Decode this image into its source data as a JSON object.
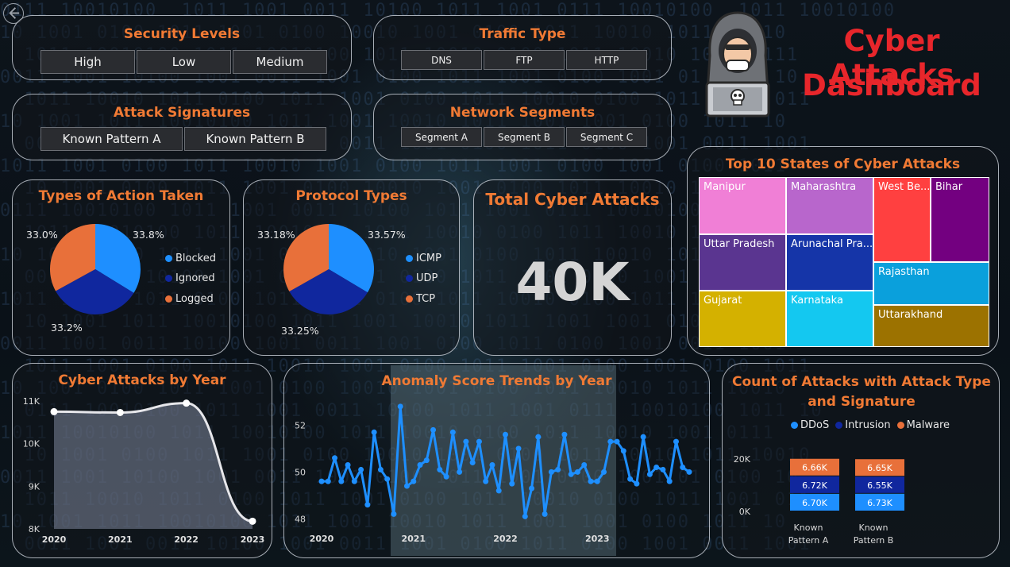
{
  "dashboard": {
    "title_line1": "Cyber Attacks",
    "title_line2": "Dashboard"
  },
  "colors": {
    "accent": "#f07a34",
    "title_red": "#e8262b",
    "series_blue": "#1e8fff",
    "series_navy": "#10279e",
    "series_orange": "#e8703a"
  },
  "slicers": {
    "security_levels": {
      "title": "Security Levels",
      "options": [
        "High",
        "Low",
        "Medium"
      ]
    },
    "traffic_type": {
      "title": "Traffic Type",
      "options": [
        "DNS",
        "FTP",
        "HTTP"
      ]
    },
    "attack_signatures": {
      "title": "Attack Signatures",
      "options": [
        "Known Pattern A",
        "Known Pattern B"
      ]
    },
    "network_segments": {
      "title": "Network Segments",
      "options": [
        "Segment A",
        "Segment B",
        "Segment C"
      ]
    }
  },
  "kpi": {
    "title": "Total Cyber Attacks",
    "value": "40K"
  },
  "chart_data": [
    {
      "type": "pie",
      "title": "Types of Action Taken",
      "labels": [
        "Blocked",
        "Ignored",
        "Logged"
      ],
      "values": [
        33.8,
        33.2,
        33.0
      ],
      "value_labels": [
        "33.8%",
        "33.2%",
        "33.0%"
      ],
      "colors": [
        "#1e8fff",
        "#10279e",
        "#e8703a"
      ],
      "legend": "right"
    },
    {
      "type": "pie",
      "title": "Protocol Types",
      "labels": [
        "ICMP",
        "UDP",
        "TCP"
      ],
      "values": [
        33.57,
        33.25,
        33.18
      ],
      "value_labels": [
        "33.57%",
        "33.25%",
        "33.18%"
      ],
      "colors": [
        "#1e8fff",
        "#10279e",
        "#e8703a"
      ],
      "legend": "right"
    },
    {
      "type": "treemap",
      "title": "Top 10 States of Cyber Attacks",
      "labels": [
        "Manipur",
        "Maharashtra",
        "West Be...",
        "Bihar",
        "Uttar Pradesh",
        "Arunachal Pra...",
        "Rajasthan",
        "Gujarat",
        "Karnataka",
        "Uttarakhand"
      ],
      "colors": [
        "#f07fd6",
        "#b866cc",
        "#ff4040",
        "#730080",
        "#5a3590",
        "#1535a8",
        "#0aa0dc",
        "#d4b100",
        "#14c8f0",
        "#9c7200"
      ]
    },
    {
      "type": "area",
      "title": "Cyber Attacks by Year",
      "x": [
        "2020",
        "2021",
        "2022",
        "2023"
      ],
      "y": [
        10.75,
        10.73,
        10.95,
        8.18
      ],
      "y_unit": "K",
      "ylim": [
        8,
        11
      ],
      "yticks": [
        "8K",
        "9K",
        "10K",
        "11K"
      ],
      "grid": false
    },
    {
      "type": "line",
      "title": "Anomaly Score Trends by Year",
      "x_range": [
        2020,
        2024
      ],
      "xticks": [
        "2020",
        "2021",
        "2022",
        "2023"
      ],
      "yticks": [
        "48",
        "50",
        "52"
      ],
      "ylim": [
        47.5,
        53.0
      ],
      "y": [
        49.6,
        49.6,
        50.6,
        49.6,
        50.3,
        49.6,
        50.1,
        48.6,
        51.7,
        50.1,
        49.7,
        48.2,
        52.8,
        49.4,
        49.6,
        50.3,
        50.5,
        51.8,
        50.1,
        49.8,
        51.7,
        50.0,
        51.3,
        50.4,
        51.3,
        49.6,
        50.3,
        49.2,
        51.6,
        49.5,
        51.0,
        48.1,
        49.3,
        51.5,
        48.2,
        50.0,
        50.1,
        51.6,
        49.9,
        50.0,
        50.3,
        49.6,
        49.6,
        50.0,
        51.3,
        51.3,
        50.9,
        49.7,
        49.5,
        51.5,
        49.9,
        50.2,
        50.1,
        49.6,
        51.3,
        50.2,
        50.0
      ],
      "grid": false
    },
    {
      "type": "bar",
      "stacked": true,
      "title": "Count of Attacks with Attack Type and Signature",
      "categories": [
        "Known Pattern A",
        "Known Pattern B"
      ],
      "series": [
        {
          "name": "DDoS",
          "values": [
            6.7,
            6.73
          ],
          "labels": [
            "6.70K",
            "6.73K"
          ]
        },
        {
          "name": "Intrusion",
          "values": [
            6.72,
            6.55
          ],
          "labels": [
            "6.72K",
            "6.55K"
          ]
        },
        {
          "name": "Malware",
          "values": [
            6.66,
            6.65
          ],
          "labels": [
            "6.66K",
            "6.65K"
          ]
        }
      ],
      "yticks": [
        "0K",
        "20K"
      ],
      "legend": "top"
    }
  ]
}
